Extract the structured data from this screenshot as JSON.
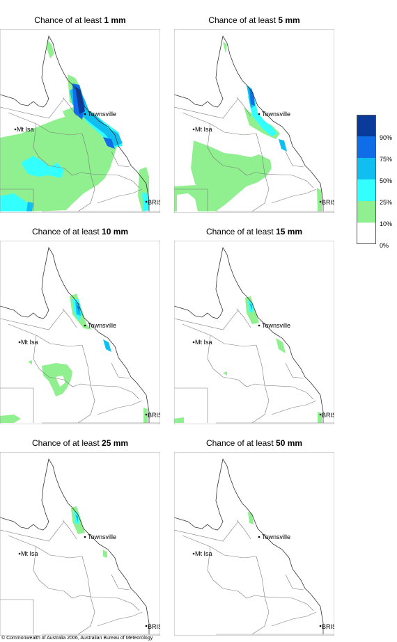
{
  "panels": [
    {
      "prefix": "Chance of at least ",
      "value": "1 mm"
    },
    {
      "prefix": "Chance of at least ",
      "value": "5 mm"
    },
    {
      "prefix": "Chance of at least ",
      "value": "10 mm"
    },
    {
      "prefix": "Chance of at least ",
      "value": "15 mm"
    },
    {
      "prefix": "Chance of at least ",
      "value": "25 mm"
    },
    {
      "prefix": "Chance of at least ",
      "value": "50 mm"
    }
  ],
  "places": {
    "townsville": "Townsville",
    "mt_isa": "Mt Isa",
    "brisbane": "BRIS"
  },
  "legend": {
    "labels": [
      "90%",
      "75%",
      "50%",
      "25%",
      "10%",
      "0%"
    ],
    "colors": [
      "#0a3a9a",
      "#0f6de8",
      "#10bff0",
      "#33ffff",
      "#90f090",
      "#ffffff"
    ]
  },
  "copyright": "© Commonwealth of Australia 2006, Australian Bureau of Meteorology"
}
